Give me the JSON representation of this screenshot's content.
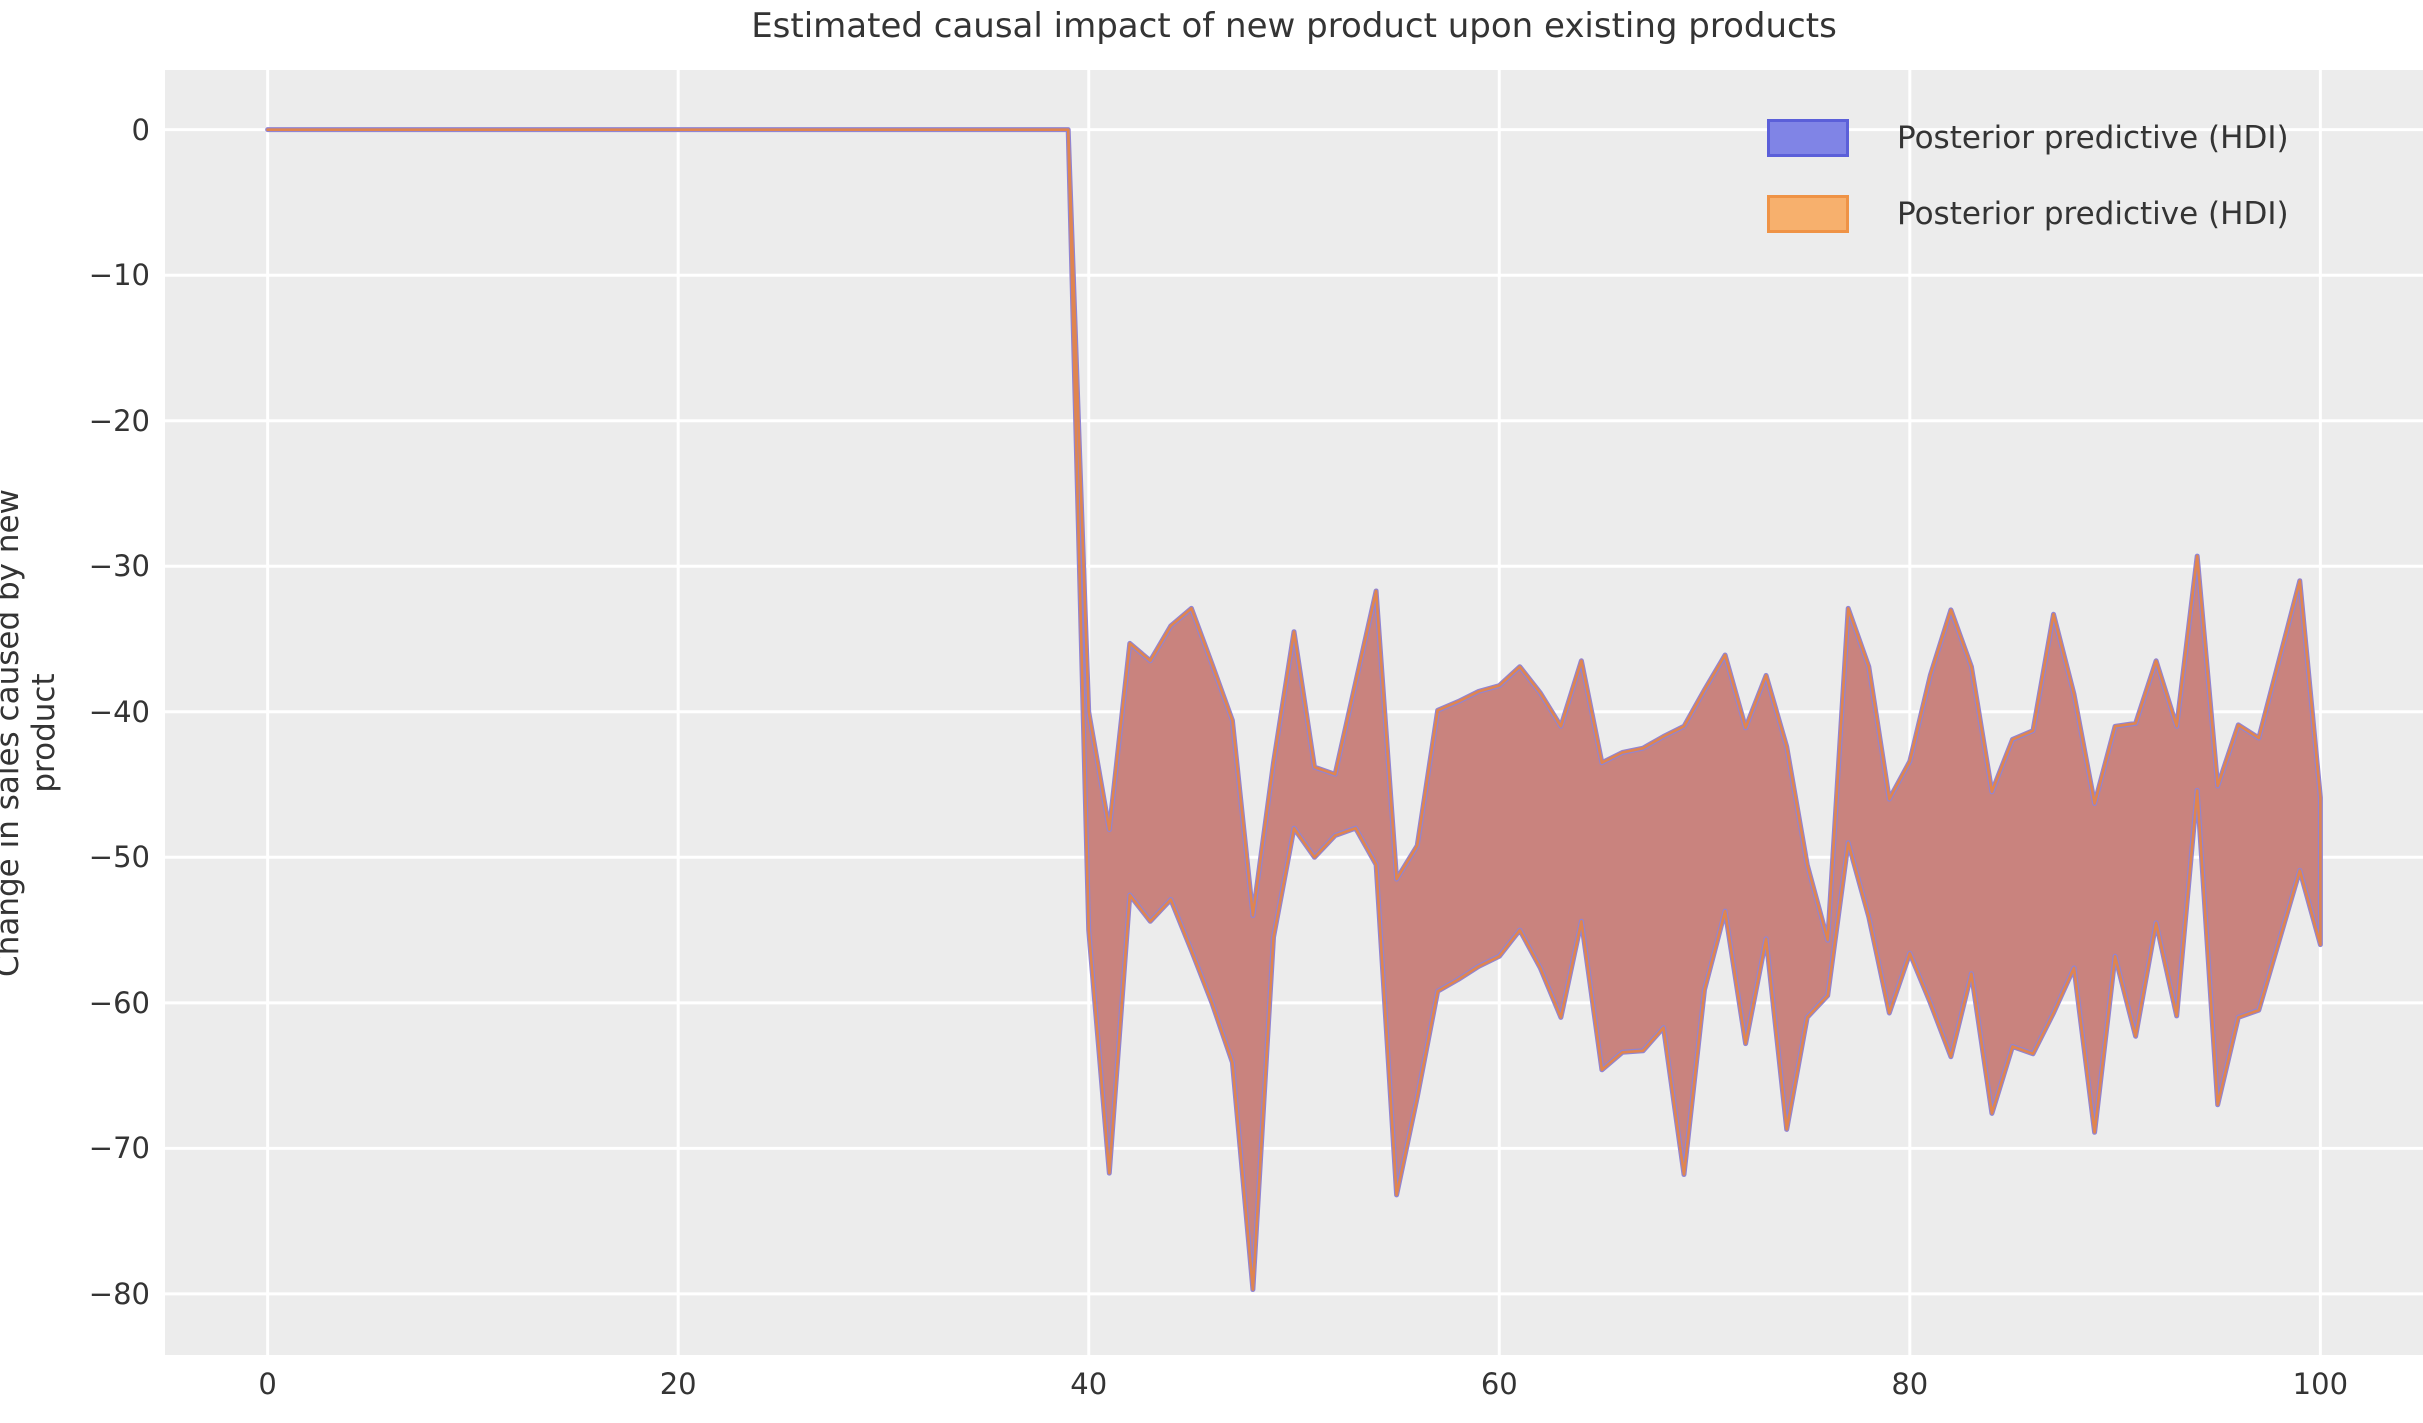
{
  "chart_data": {
    "type": "area",
    "title": "Estimated causal impact of new product upon existing products",
    "ylabel": "Change in sales caused by new product",
    "xlabel": "",
    "legend_position": "upper right",
    "grid": true,
    "xlim": [
      -5,
      105
    ],
    "ylim": [
      -84.2,
      4.1
    ],
    "x_ticks": [
      0,
      20,
      40,
      60,
      80,
      100
    ],
    "y_ticks": [
      0,
      -10,
      -20,
      -30,
      -40,
      -50,
      -60,
      -70,
      -80
    ],
    "legend": [
      {
        "label": "Posterior predictive (HDI)",
        "fill": "#8084e6",
        "border": "#5b5fd9"
      },
      {
        "label": "Posterior predictive (HDI)",
        "fill": "#f7b06d",
        "border": "#ef9346"
      }
    ],
    "pre_period": {
      "x": [
        0,
        39
      ],
      "value": 0
    },
    "band": {
      "x_start": 40,
      "upper": [
        -40.0,
        -48.1,
        -35.3,
        -36.5,
        -34.1,
        -32.9,
        -36.7,
        -40.6,
        -54.0,
        -43.5,
        -34.5,
        -43.8,
        -44.3,
        -38.0,
        -31.7,
        -51.5,
        -49.2,
        -39.9,
        -39.3,
        -38.6,
        -38.2,
        -36.9,
        -38.7,
        -41.0,
        -36.5,
        -43.5,
        -42.8,
        -42.5,
        -41.7,
        -41.0,
        -38.5,
        -36.1,
        -41.1,
        -37.5,
        -42.4,
        -50.5,
        -55.7,
        -32.9,
        -36.9,
        -46.0,
        -43.4,
        -37.5,
        -33.0,
        -36.9,
        -45.5,
        -41.9,
        -41.3,
        -33.3,
        -38.8,
        -46.3,
        -41.0,
        -40.8,
        -36.5,
        -41.0,
        -29.3,
        -45.1,
        -40.9,
        -41.8,
        -36.4,
        -31.0,
        -45.9
      ],
      "lower": [
        -55.0,
        -71.7,
        -52.6,
        -54.4,
        -52.9,
        -56.4,
        -60.0,
        -64.1,
        -79.7,
        -55.5,
        -48.0,
        -50.0,
        -48.5,
        -48.0,
        -50.5,
        -73.2,
        -66.5,
        -59.2,
        -58.4,
        -57.5,
        -56.8,
        -55.0,
        -57.6,
        -61.0,
        -54.4,
        -64.6,
        -63.4,
        -63.3,
        -61.7,
        -71.8,
        -59.1,
        -53.7,
        -62.8,
        -55.6,
        -68.7,
        -61.0,
        -59.5,
        -49.0,
        -54.1,
        -60.7,
        -56.6,
        -60.0,
        -63.7,
        -58.0,
        -67.6,
        -63.0,
        -63.5,
        -60.7,
        -57.6,
        -68.9,
        -56.8,
        -62.3,
        -54.5,
        -60.9,
        -45.4,
        -67.0,
        -61.0,
        -60.5,
        -55.7,
        -50.9,
        -56.0
      ]
    },
    "colors": {
      "plot_bg": "#ececec",
      "grid": "#ffffff",
      "band_fill": "#c9837e",
      "band_edge_orange": "#e0854f",
      "band_edge_purple": "#9184d2",
      "text": "#343434"
    }
  }
}
